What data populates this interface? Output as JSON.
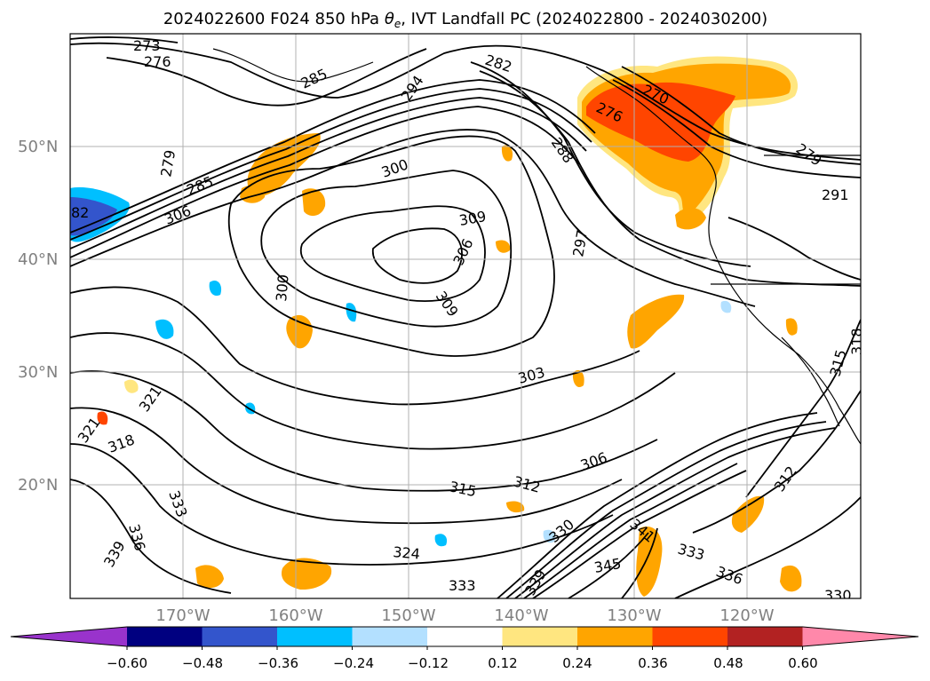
{
  "title_main": "2024022600 F024 850 hPa ",
  "title_symbol": "θ",
  "title_subscript": "e",
  "title_rest": ", IVT Landfall PC (2024022800 - 2024030200)",
  "axes": {
    "lat_labels": [
      "50°N",
      "40°N",
      "30°N",
      "20°N"
    ],
    "lon_labels": [
      "170°W",
      "160°W",
      "150°W",
      "140°W",
      "130°W",
      "120°W"
    ]
  },
  "contour_labels": [
    "273",
    "276",
    "285",
    "279",
    "285",
    "306",
    "282",
    "294",
    "288",
    "300",
    "309",
    "306",
    "297",
    "300",
    "309",
    "303",
    "306",
    "315",
    "312",
    "330",
    "324",
    "333",
    "339",
    "345",
    "341",
    "333",
    "336",
    "312",
    "321",
    "318",
    "321",
    "333",
    "336",
    "339",
    "270",
    "276",
    "279",
    "291",
    "318",
    "315",
    "330",
    "82"
  ],
  "colorbar": {
    "ticks": [
      "−0.60",
      "−0.48",
      "−0.36",
      "−0.24",
      "−0.12",
      "0.12",
      "0.24",
      "0.36",
      "0.48",
      "0.60"
    ],
    "colors": [
      "#9933cc",
      "#000080",
      "#3355cc",
      "#00bfff",
      "#b3e0ff",
      "#ffffff",
      "#ffe680",
      "#ffa500",
      "#ff4500",
      "#b22222",
      "#ff88aa"
    ]
  },
  "colors": {
    "orange": "#ffa500",
    "red_orange": "#ff4500",
    "pale_yellow": "#ffe680",
    "blue": "#3355cc",
    "light_blue": "#00bfff",
    "pale_blue": "#b3e0ff"
  }
}
